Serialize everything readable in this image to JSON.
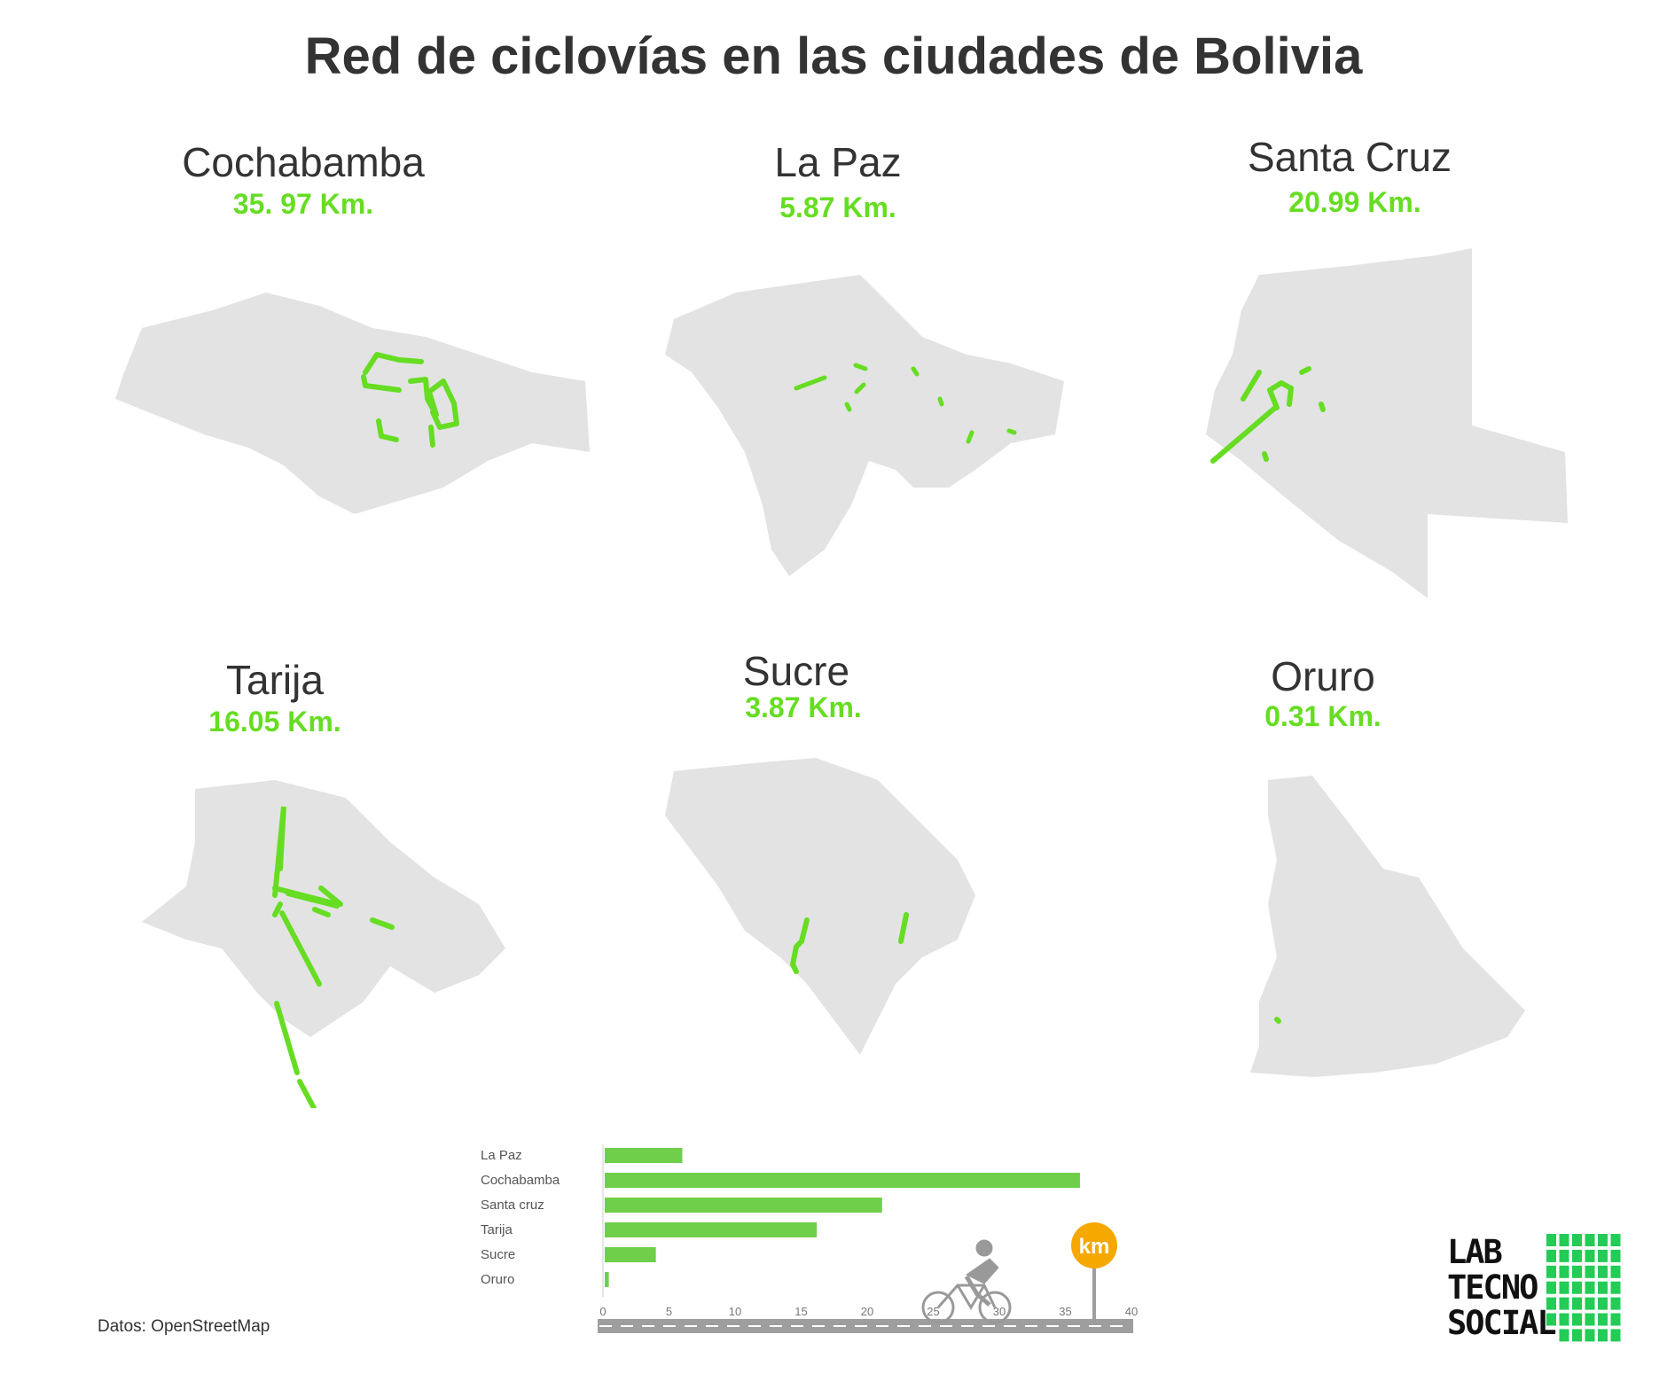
{
  "title": "Red de ciclovías en las ciudades de Bolivia",
  "cities": [
    {
      "name": "Cochabamba",
      "km": "35. 97 Km."
    },
    {
      "name": "La Paz",
      "km": "5.87 Km."
    },
    {
      "name": "Santa Cruz",
      "km": "20.99 Km."
    },
    {
      "name": "Tarija",
      "km": "16.05 Km."
    },
    {
      "name": "Sucre",
      "km": "3.87 Km."
    },
    {
      "name": "Oruro",
      "km": "0.31 Km."
    }
  ],
  "source": "Datos: OpenStreetMap",
  "colors": {
    "accent": "#66dd22",
    "bar": "#6fcf4a",
    "map": "#e3e3e3",
    "road": "#9e9e9e",
    "sign": "#f5a800",
    "logo": "#22cc55"
  },
  "chart_data": {
    "type": "bar",
    "orientation": "horizontal",
    "categories": [
      "La Paz",
      "Cochabamba",
      "Santa cruz",
      "Tarija",
      "Sucre",
      "Oruro"
    ],
    "values": [
      5.87,
      35.97,
      20.99,
      16.05,
      3.87,
      0.31
    ],
    "xlim": [
      0,
      40
    ],
    "xticks": [
      0,
      5,
      10,
      15,
      20,
      25,
      30,
      35,
      40
    ],
    "unit_badge": "km"
  },
  "logo": {
    "lines": [
      "LAB",
      "TECNO",
      "SOCIAL"
    ]
  }
}
